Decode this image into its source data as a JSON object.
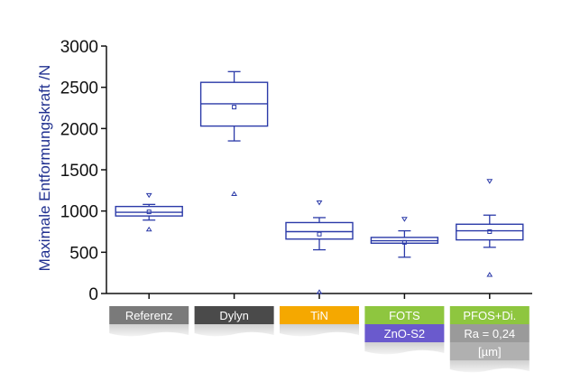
{
  "chart_data": {
    "type": "box",
    "ylabel": "Maximale Entformungskraft /N",
    "xlabel": "",
    "ylim": [
      0,
      3000
    ],
    "yticks": [
      0,
      500,
      1000,
      1500,
      2000,
      2500,
      3000
    ],
    "grid": false,
    "categories": [
      {
        "lines": [
          "Referenz"
        ],
        "colors": [
          "#7a7a7a"
        ],
        "values": {
          "q1": 940,
          "median": 985,
          "q3": 1055,
          "whisker_low": 890,
          "whisker_high": 1080,
          "mean": 990,
          "max": 1190,
          "min": 780
        }
      },
      {
        "lines": [
          "Dylyn"
        ],
        "colors": [
          "#4a4a4a"
        ],
        "values": {
          "q1": 2030,
          "median": 2300,
          "q3": 2560,
          "whisker_low": 1850,
          "whisker_high": 2690,
          "mean": 2260,
          "max": null,
          "min": 1210
        }
      },
      {
        "lines": [
          "TiN"
        ],
        "colors": [
          "#f5a800"
        ],
        "values": {
          "q1": 660,
          "median": 750,
          "q3": 860,
          "whisker_low": 530,
          "whisker_high": 920,
          "mean": 720,
          "max": 1100,
          "min": 20
        }
      },
      {
        "lines": [
          "FOTS",
          "ZnO-S2"
        ],
        "colors": [
          "#8ec63f",
          "#6a5acd"
        ],
        "values": {
          "q1": 610,
          "median": 640,
          "q3": 680,
          "whisker_low": 440,
          "whisker_high": 760,
          "mean": 620,
          "max": 900,
          "min": null
        }
      },
      {
        "lines": [
          "PFOS+Di.",
          "Ra = 0,24",
          "[µm]"
        ],
        "colors": [
          "#8ec63f",
          "#9a9a9a",
          "#b0b0b0"
        ],
        "values": {
          "q1": 650,
          "median": 760,
          "q3": 840,
          "whisker_low": 560,
          "whisker_high": 950,
          "mean": 750,
          "max": 1360,
          "min": 230
        }
      }
    ],
    "series_color": "#2b3aa8"
  }
}
